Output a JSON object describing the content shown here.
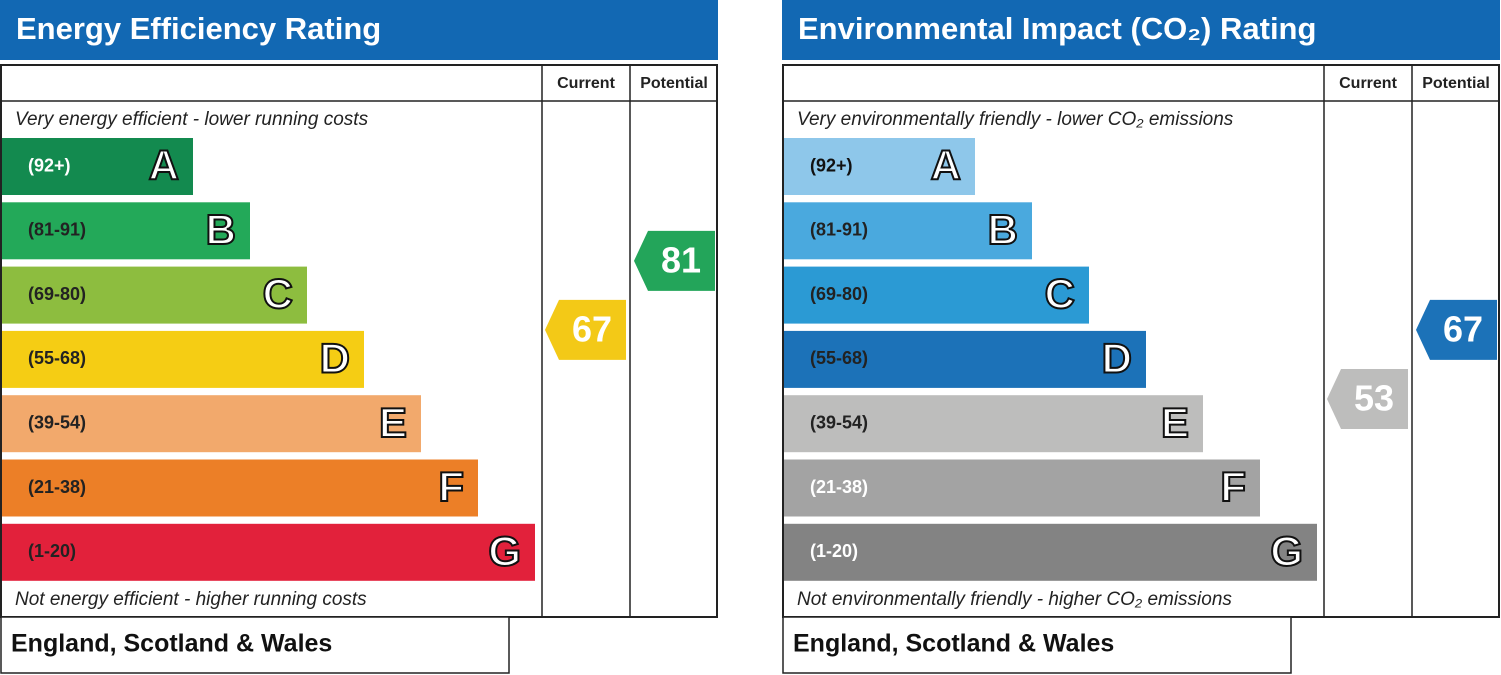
{
  "chart_data": [
    {
      "type": "epc",
      "title": "Energy Efficiency Rating",
      "column_labels": [
        "Current",
        "Potential"
      ],
      "top_note": "Very energy efficient - lower running costs",
      "bottom_note": "Not energy efficient - higher running costs",
      "footer": "England, Scotland & Wales",
      "bands": [
        {
          "range": "(92+)",
          "letter": "A",
          "color": "#138a4f",
          "label_color": "#ffffff"
        },
        {
          "range": "(81-91)",
          "letter": "B",
          "color": "#23a959",
          "label_color": "#222222"
        },
        {
          "range": "(69-80)",
          "letter": "C",
          "color": "#8dbd3f",
          "label_color": "#222222"
        },
        {
          "range": "(55-68)",
          "letter": "D",
          "color": "#f5cd14",
          "label_color": "#222222"
        },
        {
          "range": "(39-54)",
          "letter": "E",
          "color": "#f2a96c",
          "label_color": "#222222"
        },
        {
          "range": "(21-38)",
          "letter": "F",
          "color": "#ec7f27",
          "label_color": "#222222"
        },
        {
          "range": "(1-20)",
          "letter": "G",
          "color": "#e2213b",
          "label_color": "#222222"
        }
      ],
      "current": 67,
      "potential": 81,
      "current_color": "#f3c917",
      "potential_color": "#23a55a",
      "ylim": [
        9,
        113
      ]
    },
    {
      "type": "epc",
      "title": "Environmental Impact (CO₂) Rating",
      "column_labels": [
        "Current",
        "Potential"
      ],
      "top_note": "Very environmentally friendly - lower CO₂ emissions",
      "bottom_note": "Not environmentally friendly - higher CO₂ emissions",
      "footer": "England, Scotland & Wales",
      "bands": [
        {
          "range": "(92+)",
          "letter": "A",
          "color": "#8ec7ea",
          "label_color": "#111111"
        },
        {
          "range": "(81-91)",
          "letter": "B",
          "color": "#4aa9de",
          "label_color": "#222222"
        },
        {
          "range": "(69-80)",
          "letter": "C",
          "color": "#2b9ad4",
          "label_color": "#222222"
        },
        {
          "range": "(55-68)",
          "letter": "D",
          "color": "#1c72b8",
          "label_color": "#222222"
        },
        {
          "range": "(39-54)",
          "letter": "E",
          "color": "#bdbdbc",
          "label_color": "#222222"
        },
        {
          "range": "(21-38)",
          "letter": "F",
          "color": "#a3a3a3",
          "label_color": "#ffffff"
        },
        {
          "range": "(1-20)",
          "letter": "G",
          "color": "#838383",
          "label_color": "#ffffff"
        }
      ],
      "current": 53,
      "potential": 67,
      "current_color": "#bdbdbc",
      "potential_color": "#1c72b8",
      "ylim": [
        9,
        113
      ]
    }
  ]
}
